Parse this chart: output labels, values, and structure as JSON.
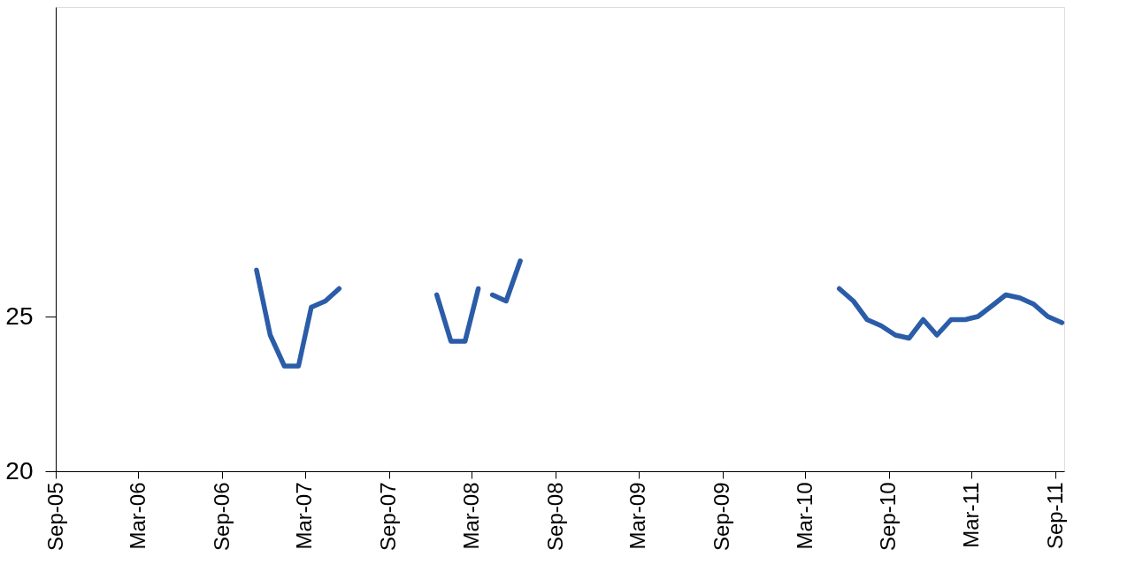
{
  "chart_data": {
    "type": "line",
    "x": [
      "2006-11-15",
      "2006-12-15",
      "2007-01-15",
      "2007-02-15",
      "2007-03-15",
      "2007-04-15",
      "2007-05-15",
      "2007-06-15",
      "2007-12-15",
      "2008-01-15",
      "2008-02-15",
      "2008-03-15",
      "2008-04-01",
      "2008-04-15",
      "2008-05-15",
      "2008-06-15",
      "2008-07-15",
      "2010-05-15",
      "2010-06-15",
      "2010-07-15",
      "2010-08-15",
      "2010-09-15",
      "2010-10-15",
      "2010-11-15",
      "2010-12-15",
      "2011-01-15",
      "2011-02-15",
      "2011-03-15",
      "2011-04-15",
      "2011-05-15",
      "2011-06-15",
      "2011-07-15",
      "2011-08-15",
      "2011-09-15"
    ],
    "series": [
      {
        "color": "#2b5ca8",
        "values": [
          26.5,
          24.4,
          23.4,
          23.4,
          25.3,
          25.5,
          25.9,
          null,
          25.7,
          24.2,
          24.2,
          25.9,
          null,
          25.7,
          25.5,
          26.8,
          null,
          25.9,
          25.5,
          24.9,
          24.7,
          24.4,
          24.3,
          24.9,
          24.4,
          24.9,
          24.9,
          25.0,
          25.35,
          25.7,
          25.6,
          25.4,
          25.0,
          24.8
        ]
      }
    ],
    "xlim": [
      "2005-09-01",
      "2011-09-20"
    ],
    "xticks": [
      {
        "value": "2005-09-01",
        "label": "Sep-05"
      },
      {
        "value": "2006-03-01",
        "label": "Mar-06"
      },
      {
        "value": "2006-09-01",
        "label": "Sep-06"
      },
      {
        "value": "2007-03-01",
        "label": "Mar-07"
      },
      {
        "value": "2007-09-01",
        "label": "Sep-07"
      },
      {
        "value": "2008-03-01",
        "label": "Mar-08"
      },
      {
        "value": "2008-09-01",
        "label": "Sep-08"
      },
      {
        "value": "2009-03-01",
        "label": "Mar-09"
      },
      {
        "value": "2009-09-01",
        "label": "Sep-09"
      },
      {
        "value": "2010-03-01",
        "label": "Mar-10"
      },
      {
        "value": "2010-09-01",
        "label": "Sep-10"
      },
      {
        "value": "2011-03-01",
        "label": "Mar-11"
      },
      {
        "value": "2011-09-01",
        "label": "Sep-11"
      }
    ],
    "ylim": [
      20,
      35
    ],
    "yticks": [
      20,
      25
    ],
    "grid": false,
    "legend": false,
    "marker": "none",
    "line_style": "solid"
  }
}
